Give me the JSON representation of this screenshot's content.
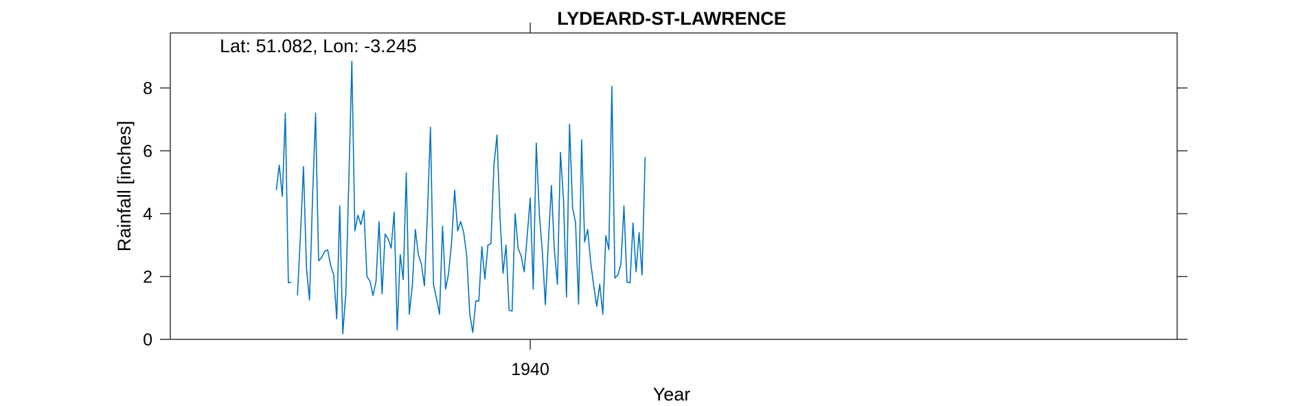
{
  "chart_data": {
    "type": "line",
    "title": "LYDEARD-ST-LAWRENCE",
    "xlabel": "Year",
    "ylabel": "Rainfall [inches]",
    "annotation": "Lat: 51.082, Lon: -3.245",
    "xlim": [
      1930.08,
      1957.83
    ],
    "ylim": [
      0,
      9.75
    ],
    "x_ticks": [
      1940
    ],
    "x_tick_labels": [
      "1940"
    ],
    "y_ticks": [
      0,
      2,
      4,
      6,
      8
    ],
    "y_tick_labels": [
      "0",
      "2",
      "4",
      "6",
      "8"
    ],
    "grid": false,
    "legend": "none",
    "colors": {
      "line": "#0072bd",
      "axes": "#262626"
    },
    "time_unit": "month",
    "start": "1933-01",
    "series": [
      {
        "values": [
          4.75,
          5.55,
          4.55,
          7.2,
          1.8,
          1.82,
          null,
          1.4,
          3.3,
          5.5,
          2.25,
          1.25,
          4.5,
          7.2,
          2.5,
          2.6,
          2.8,
          2.85,
          2.35,
          2.05,
          0.65,
          4.25,
          0.18,
          1.45,
          5.05,
          8.85,
          3.45,
          3.95,
          3.65,
          4.1,
          2.0,
          1.85,
          1.4,
          1.85,
          3.75,
          1.45,
          3.35,
          3.2,
          2.9,
          4.05,
          0.3,
          2.7,
          1.9,
          5.3,
          0.8,
          1.7,
          3.5,
          2.7,
          2.4,
          1.7,
          4.0,
          6.75,
          1.75,
          1.3,
          0.8,
          3.6,
          1.6,
          2.1,
          3.1,
          4.75,
          3.45,
          3.75,
          3.4,
          2.65,
          0.8,
          0.22,
          1.22,
          1.22,
          2.95,
          1.92,
          3.0,
          3.05,
          5.55,
          6.5,
          3.9,
          2.1,
          3.0,
          0.93,
          0.9,
          4.0,
          2.9,
          2.65,
          2.15,
          3.3,
          4.5,
          1.6,
          6.25,
          4.0,
          2.8,
          1.1,
          3.1,
          4.9,
          2.8,
          1.75,
          5.95,
          4.45,
          1.35,
          6.85,
          4.2,
          3.7,
          1.12,
          6.35,
          3.1,
          3.5,
          2.45,
          1.7,
          1.05,
          1.75,
          0.8,
          3.3,
          2.85,
          8.05,
          1.95,
          2.05,
          2.4,
          4.25,
          1.82,
          1.8,
          3.7,
          2.15,
          3.4,
          2.05,
          5.8
        ]
      }
    ]
  }
}
